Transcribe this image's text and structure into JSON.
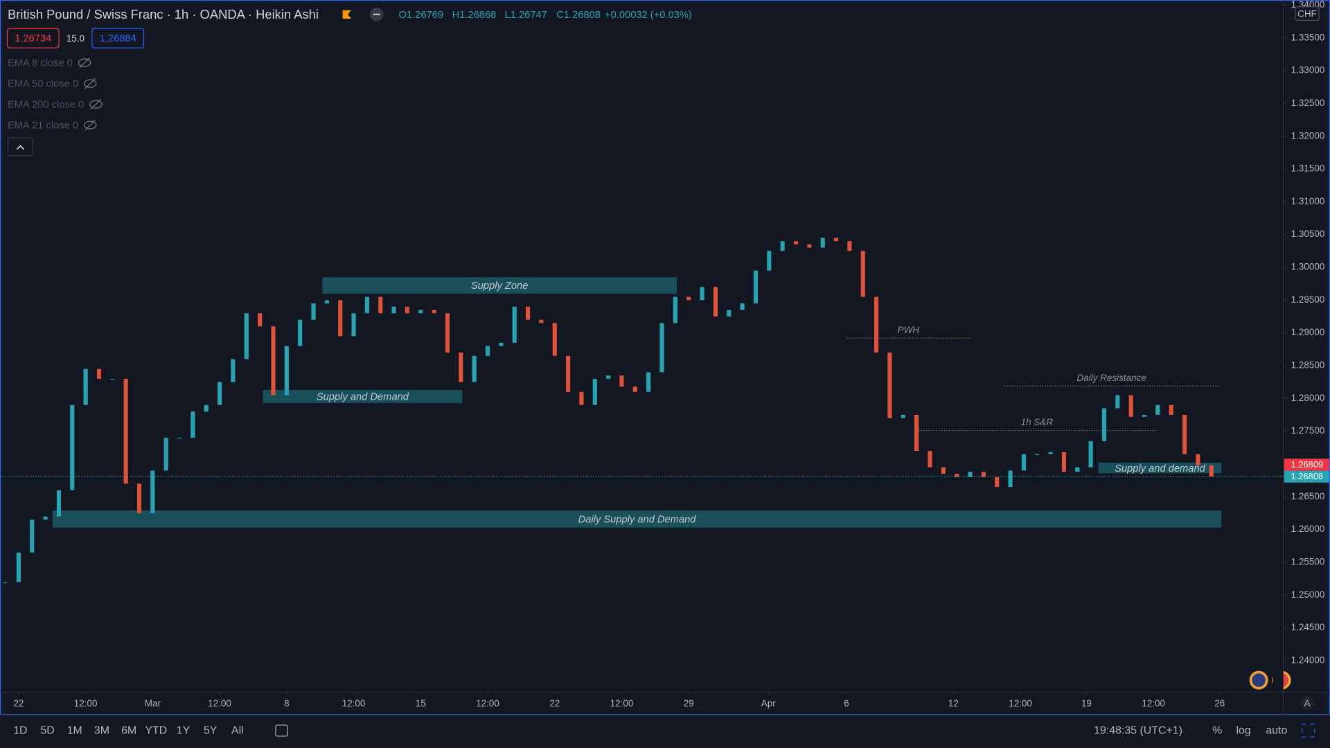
{
  "header": {
    "symbol": "British Pound / Swiss Franc · 1h · OANDA · Heikin Ashi",
    "ohlc": [
      "O1.26769",
      "H1.26868",
      "L1.26747",
      "C1.26808",
      "+0.00032 (+0.03%)"
    ],
    "bid": "1.26734",
    "spread": "15.0",
    "ask": "1.26884",
    "indicators": [
      "EMA 8 close 0",
      "EMA 50 close 0",
      "EMA 200 close 0",
      "EMA 21 close 0"
    ]
  },
  "chart_data": {
    "type": "candlestick",
    "x": [
      -0.1,
      0,
      0.1,
      0.2,
      0.3,
      0.4,
      0.5,
      0.6,
      0.7,
      0.8,
      0.9,
      1,
      1.1,
      1.2,
      1.3,
      1.4,
      1.5,
      1.6,
      1.7,
      1.8,
      1.9,
      2,
      2.1,
      2.2,
      2.3,
      2.4,
      2.5,
      2.6,
      2.7,
      2.8,
      2.9,
      3,
      3.1,
      3.2,
      3.3,
      3.4,
      3.5,
      3.6,
      3.7,
      3.8,
      3.9,
      4,
      4.1,
      4.2,
      4.3,
      4.4,
      4.5,
      4.6,
      4.7,
      4.8,
      4.9,
      5,
      5.1,
      5.2,
      5.3,
      5.4,
      5.5,
      5.6,
      5.7,
      5.8,
      5.9,
      6,
      6.1,
      6.2,
      6.3,
      6.4,
      6.5,
      6.6,
      6.7,
      6.8,
      6.9,
      7,
      7.1,
      7.2,
      7.3,
      7.4,
      7.5,
      7.6,
      7.7,
      7.8,
      7.9,
      8,
      8.1,
      8.2,
      8.3,
      8.4,
      8.5,
      8.6,
      8.7,
      8.8,
      8.9
    ],
    "values": [
      1.252,
      1.2565,
      1.2615,
      1.262,
      1.266,
      1.279,
      1.2845,
      1.283,
      1.283,
      1.267,
      1.2625,
      1.269,
      1.274,
      1.274,
      1.278,
      1.279,
      1.2825,
      1.286,
      1.293,
      1.291,
      1.2805,
      1.288,
      1.292,
      1.2945,
      1.295,
      1.2895,
      1.293,
      1.2955,
      1.293,
      1.294,
      1.293,
      1.2935,
      1.293,
      1.287,
      1.2825,
      1.2865,
      1.288,
      1.2885,
      1.294,
      1.292,
      1.2915,
      1.2865,
      1.281,
      1.279,
      1.283,
      1.2835,
      1.2818,
      1.281,
      1.284,
      1.2915,
      1.2955,
      1.295,
      1.297,
      1.2925,
      1.2935,
      1.2945,
      1.2995,
      1.3025,
      1.304,
      1.3035,
      1.303,
      1.3045,
      1.304,
      1.3025,
      1.2955,
      1.287,
      1.277,
      1.2775,
      1.272,
      1.2695,
      1.2685,
      1.268,
      1.2688,
      1.268,
      1.2665,
      1.269,
      1.2715,
      1.2715,
      1.2718,
      1.2688,
      1.2695,
      1.2735,
      1.2785,
      1.2805,
      1.2772,
      1.2775,
      1.279,
      1.2775,
      1.2715,
      1.2698,
      1.26808
    ],
    "up_color": "#26a4b4",
    "down_color": "#e0533a",
    "xlim": [
      -0.139,
      9.437
    ],
    "ylim": [
      1.23522,
      1.34078
    ],
    "grid": false,
    "xticks": [
      {
        "value": 0,
        "label": "22"
      },
      {
        "value": 0.5,
        "label": "12:00"
      },
      {
        "value": 1,
        "label": "Mar"
      },
      {
        "value": 1.5,
        "label": "12:00"
      },
      {
        "value": 2,
        "label": "8"
      },
      {
        "value": 2.5,
        "label": "12:00"
      },
      {
        "value": 3,
        "label": "15"
      },
      {
        "value": 3.5,
        "label": "12:00"
      },
      {
        "value": 4,
        "label": "22"
      },
      {
        "value": 4.5,
        "label": "12:00"
      },
      {
        "value": 5,
        "label": "29"
      },
      {
        "value": 5.595,
        "label": "Apr"
      },
      {
        "value": 6.177,
        "label": "6"
      },
      {
        "value": 6.975,
        "label": "12"
      },
      {
        "value": 7.475,
        "label": "12:00"
      },
      {
        "value": 7.968,
        "label": "19"
      },
      {
        "value": 8.468,
        "label": "12:00"
      },
      {
        "value": 8.962,
        "label": "26"
      }
    ],
    "yticks": [
      {
        "value": 1.24,
        "label": "1.24000"
      },
      {
        "value": 1.245,
        "label": "1.24500"
      },
      {
        "value": 1.25,
        "label": "1.25000"
      },
      {
        "value": 1.255,
        "label": "1.25500"
      },
      {
        "value": 1.26,
        "label": "1.26000"
      },
      {
        "value": 1.265,
        "label": "1.26500"
      },
      {
        "value": 1.27,
        "label": "1.27000"
      },
      {
        "value": 1.275,
        "label": "1.27500"
      },
      {
        "value": 1.28,
        "label": "1.28000"
      },
      {
        "value": 1.285,
        "label": "1.28500"
      },
      {
        "value": 1.29,
        "label": "1.29000"
      },
      {
        "value": 1.295,
        "label": "1.29500"
      },
      {
        "value": 1.3,
        "label": "1.30000"
      },
      {
        "value": 1.305,
        "label": "1.30500"
      },
      {
        "value": 1.31,
        "label": "1.31000"
      },
      {
        "value": 1.315,
        "label": "1.31500"
      },
      {
        "value": 1.32,
        "label": "1.32000"
      },
      {
        "value": 1.325,
        "label": "1.32500"
      },
      {
        "value": 1.33,
        "label": "1.33000"
      },
      {
        "value": 1.335,
        "label": "1.33500"
      },
      {
        "value": 1.34,
        "label": "1.34000"
      }
    ],
    "currency": "CHF",
    "zones": [
      {
        "label": "Supply Zone",
        "x": [
          2.266,
          4.911
        ],
        "y": [
          1.296,
          1.2985
        ]
      },
      {
        "label": "Supply and Demand",
        "x": [
          1.823,
          3.31
        ],
        "y": [
          1.2793,
          1.2813
        ]
      },
      {
        "label": "Daily Supply and Demand",
        "x": [
          0.253,
          8.975
        ],
        "y": [
          1.2603,
          1.2629
        ]
      },
      {
        "label": "Supply and demand",
        "x": [
          8.057,
          8.975
        ],
        "y": [
          1.2686,
          1.2702
        ]
      }
    ],
    "levels": [
      {
        "label": "PWH",
        "x": [
          6.177,
          7.101
        ],
        "value": 1.2892,
        "color": "#9a8a3c"
      },
      {
        "label": "Daily Resistance",
        "x": [
          7.354,
          8.956
        ],
        "value": 1.2819,
        "color": "#8a8f99"
      },
      {
        "label": "1h S&R",
        "x": [
          6.696,
          8.5
        ],
        "value": 1.2751,
        "color": "#8a8f99"
      }
    ],
    "price_labels": [
      {
        "value": 1.26809,
        "color": "#f23645"
      },
      {
        "value": 1.26808,
        "color": "#26a4b4"
      }
    ]
  },
  "toolbar": {
    "ranges": [
      "1D",
      "5D",
      "1M",
      "3M",
      "6M",
      "YTD",
      "1Y",
      "5Y",
      "All"
    ],
    "clock": "19:48:35 (UTC+1)",
    "options": [
      "%",
      "log",
      "auto"
    ]
  }
}
